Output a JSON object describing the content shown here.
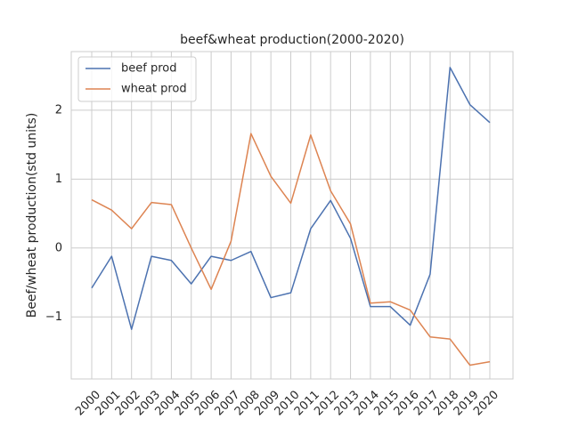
{
  "chart_data": {
    "type": "line",
    "title": "beef&wheat production(2000-2020)",
    "xlabel": "",
    "ylabel": "Beef/wheat production(std units)",
    "categories": [
      "2000",
      "2001",
      "2002",
      "2003",
      "2004",
      "2005",
      "2006",
      "2007",
      "2008",
      "2009",
      "2010",
      "2011",
      "2012",
      "2013",
      "2014",
      "2015",
      "2016",
      "2017",
      "2018",
      "2019",
      "2020"
    ],
    "series": [
      {
        "name": "beef prod",
        "color": "#4c72b0",
        "values": [
          -0.58,
          -0.12,
          -1.18,
          -0.12,
          -0.18,
          -0.52,
          -0.12,
          -0.18,
          -0.05,
          -0.72,
          -0.65,
          0.28,
          0.69,
          0.14,
          -0.85,
          -0.85,
          -1.12,
          -0.38,
          2.62,
          2.08,
          1.82
        ]
      },
      {
        "name": "wheat prod",
        "color": "#dd8452",
        "values": [
          0.7,
          0.55,
          0.28,
          0.66,
          0.63,
          0.0,
          -0.6,
          0.1,
          1.66,
          1.04,
          0.65,
          1.64,
          0.83,
          0.35,
          -0.8,
          -0.78,
          -0.9,
          -1.29,
          -1.32,
          -1.7,
          -1.65
        ]
      }
    ],
    "ylim": [
      -1.9,
      2.85
    ],
    "yticks": [
      -1,
      0,
      1,
      2
    ],
    "ytick_labels": [
      "−1",
      "0",
      "1",
      "2"
    ],
    "grid": true,
    "legend_position": "top-left"
  }
}
